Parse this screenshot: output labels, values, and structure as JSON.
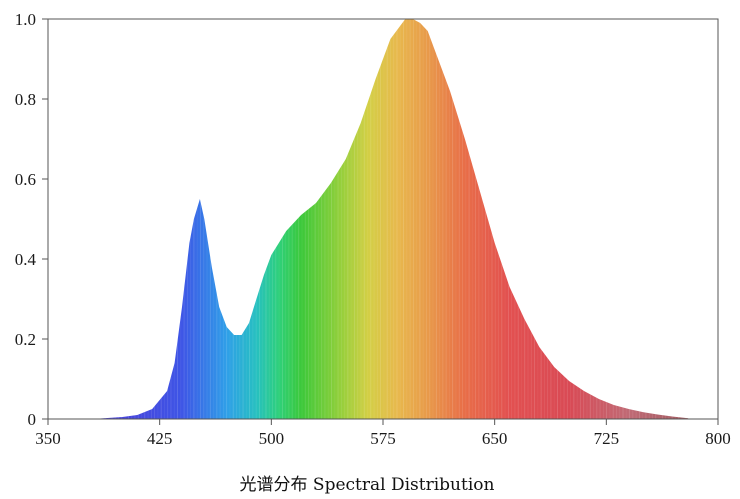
{
  "chart_data": {
    "type": "area",
    "xlabel": "光谱分布 Spectral Distribution",
    "ylabel": "",
    "xlim": [
      350,
      800
    ],
    "ylim": [
      0,
      1.0
    ],
    "x_ticks": [
      "350",
      "425",
      "500",
      "575",
      "650",
      "725",
      "800"
    ],
    "y_ticks": [
      "0",
      "0.2",
      "0.4",
      "0.6",
      "0.8",
      "1.0"
    ],
    "grid": false,
    "fill": "spectral-rainbow",
    "series": [
      {
        "x": [
          380,
          400,
          410,
          420,
          430,
          435,
          440,
          445,
          448,
          452,
          455,
          460,
          465,
          470,
          475,
          480,
          485,
          490,
          495,
          500,
          505,
          510,
          520,
          530,
          540,
          550,
          560,
          570,
          580,
          590,
          595,
          600,
          605,
          610,
          620,
          630,
          640,
          650,
          660,
          670,
          680,
          690,
          700,
          710,
          720,
          730,
          740,
          750,
          760,
          770,
          780
        ],
        "y": [
          0.0,
          0.005,
          0.01,
          0.025,
          0.07,
          0.14,
          0.28,
          0.44,
          0.5,
          0.55,
          0.5,
          0.38,
          0.28,
          0.23,
          0.21,
          0.21,
          0.24,
          0.3,
          0.36,
          0.41,
          0.44,
          0.47,
          0.51,
          0.54,
          0.59,
          0.65,
          0.74,
          0.85,
          0.95,
          1.0,
          1.0,
          0.99,
          0.97,
          0.92,
          0.82,
          0.7,
          0.57,
          0.44,
          0.33,
          0.25,
          0.18,
          0.13,
          0.095,
          0.07,
          0.05,
          0.035,
          0.025,
          0.017,
          0.011,
          0.006,
          0.002
        ]
      }
    ]
  }
}
